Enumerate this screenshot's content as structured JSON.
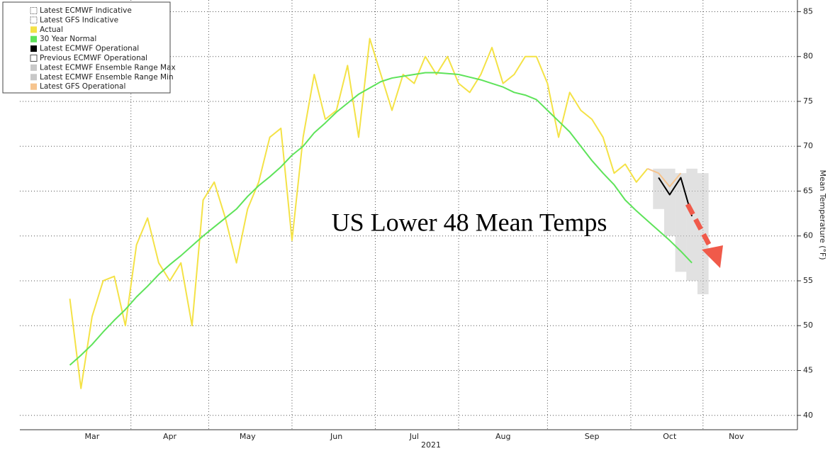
{
  "chart_data": {
    "type": "line",
    "title": "US Lower 48 Mean Temps",
    "xlabel": "2021",
    "ylabel": "Mean Temperature (°F)",
    "categories": [
      null,
      null,
      null,
      null,
      null,
      null,
      "Mar",
      null,
      null,
      null,
      null,
      null,
      null,
      "Apr",
      null,
      null,
      null,
      null,
      null,
      null,
      "May",
      null,
      null,
      null,
      null,
      null,
      null,
      null,
      "Jun",
      null,
      null,
      null,
      null,
      null,
      null,
      "Jul",
      null,
      null,
      null,
      null,
      null,
      null,
      null,
      "Aug",
      null,
      null,
      null,
      null,
      null,
      null,
      null,
      "Sep",
      null,
      null,
      null,
      null,
      null,
      null,
      "Oct",
      null,
      null,
      null,
      null,
      null,
      "Nov",
      null,
      null,
      null,
      null,
      null
    ],
    "ylim": [
      38.4,
      86.3
    ],
    "yticks": [
      40,
      45,
      50,
      55,
      60,
      65,
      70,
      75,
      80,
      85
    ],
    "grid": true,
    "legend": "upper left",
    "series": [
      {
        "name": "Latest ECMWF Indicative",
        "color": "#ffffff",
        "dashed": true
      },
      {
        "name": "Latest GFS Indicative",
        "color": "#ffffff",
        "dashed": true
      },
      {
        "name": "Actual",
        "color": "#f4e246",
        "values": [
          null,
          null,
          null,
          null,
          53,
          43,
          51,
          55,
          55.5,
          50,
          59,
          62,
          57,
          55,
          57,
          50,
          64,
          66,
          62,
          57,
          63,
          66,
          71,
          72,
          59.5,
          71,
          78,
          73,
          74,
          79,
          71,
          82,
          78,
          74,
          78,
          77,
          80,
          78,
          80,
          77,
          76,
          78,
          81,
          77,
          78,
          80,
          80,
          77,
          71,
          76,
          74,
          73,
          71,
          67,
          68,
          66,
          67.5,
          null,
          null,
          null,
          null,
          null,
          null,
          null,
          null,
          null,
          null,
          null,
          null,
          null
        ]
      },
      {
        "name": "30 Year Normal",
        "color": "#5ee35a",
        "values": [
          null,
          null,
          null,
          null,
          45.6,
          46.7,
          47.9,
          49.3,
          50.6,
          51.8,
          53.2,
          54.4,
          55.7,
          56.8,
          57.8,
          58.9,
          60,
          61,
          62,
          63,
          64.4,
          65.6,
          66.6,
          67.7,
          69,
          70,
          71.5,
          72.6,
          73.8,
          74.8,
          75.8,
          76.5,
          77.2,
          77.6,
          77.8,
          78,
          78.2,
          78.2,
          78.1,
          78,
          77.7,
          77.4,
          77,
          76.6,
          76,
          75.7,
          75.2,
          74,
          72.8,
          71.6,
          70,
          68.4,
          67,
          65.7,
          64,
          62.8,
          61.7,
          60.6,
          59.5,
          58.3,
          57,
          null,
          null,
          null,
          null,
          null,
          null,
          null,
          null,
          null
        ]
      },
      {
        "name": "Latest ECMWF Operational",
        "color": "#000000",
        "values": [
          null,
          null,
          null,
          null,
          null,
          null,
          null,
          null,
          null,
          null,
          null,
          null,
          null,
          null,
          null,
          null,
          null,
          null,
          null,
          null,
          null,
          null,
          null,
          null,
          null,
          null,
          null,
          null,
          null,
          null,
          null,
          null,
          null,
          null,
          null,
          null,
          null,
          null,
          null,
          null,
          null,
          null,
          null,
          null,
          null,
          null,
          null,
          null,
          null,
          null,
          null,
          null,
          null,
          null,
          null,
          null,
          null,
          66.5,
          64.6,
          66.5,
          62.2,
          null,
          null,
          null,
          null,
          null,
          null,
          null,
          null,
          null
        ]
      },
      {
        "name": "Previous ECMWF Operational",
        "color": "#ffffff"
      },
      {
        "name": "Latest ECMWF Ensemble Range Max",
        "color": "#c8c8c8",
        "band": "max",
        "values": [
          null,
          null,
          null,
          null,
          null,
          null,
          null,
          null,
          null,
          null,
          null,
          null,
          null,
          null,
          null,
          null,
          null,
          null,
          null,
          null,
          null,
          null,
          null,
          null,
          null,
          null,
          null,
          null,
          null,
          null,
          null,
          null,
          null,
          null,
          null,
          null,
          null,
          null,
          null,
          null,
          null,
          null,
          null,
          null,
          null,
          null,
          null,
          null,
          null,
          null,
          null,
          null,
          null,
          null,
          null,
          null,
          null,
          67.5,
          67.5,
          67,
          67.5,
          67,
          null,
          null,
          null,
          null,
          null,
          null,
          null,
          null
        ]
      },
      {
        "name": "Latest ECMWF Ensemble Range Min",
        "color": "#c8c8c8",
        "band": "min",
        "values": [
          null,
          null,
          null,
          null,
          null,
          null,
          null,
          null,
          null,
          null,
          null,
          null,
          null,
          null,
          null,
          null,
          null,
          null,
          null,
          null,
          null,
          null,
          null,
          null,
          null,
          null,
          null,
          null,
          null,
          null,
          null,
          null,
          null,
          null,
          null,
          null,
          null,
          null,
          null,
          null,
          null,
          null,
          null,
          null,
          null,
          null,
          null,
          null,
          null,
          null,
          null,
          null,
          null,
          null,
          null,
          null,
          null,
          63,
          60,
          56,
          55,
          53.5,
          null,
          null,
          null,
          null,
          null,
          null,
          null,
          null
        ]
      },
      {
        "name": "Latest GFS Operational",
        "color": "#f6c48e",
        "values": [
          null,
          null,
          null,
          null,
          null,
          null,
          null,
          null,
          null,
          null,
          null,
          null,
          null,
          null,
          null,
          null,
          null,
          null,
          null,
          null,
          null,
          null,
          null,
          null,
          null,
          null,
          null,
          null,
          null,
          null,
          null,
          null,
          null,
          null,
          null,
          null,
          null,
          null,
          null,
          null,
          null,
          null,
          null,
          null,
          null,
          null,
          null,
          null,
          null,
          null,
          null,
          null,
          null,
          null,
          null,
          null,
          67.5,
          67,
          65.5,
          67,
          null,
          null,
          null,
          null,
          null,
          null,
          null,
          null,
          null,
          null
        ]
      }
    ]
  }
}
